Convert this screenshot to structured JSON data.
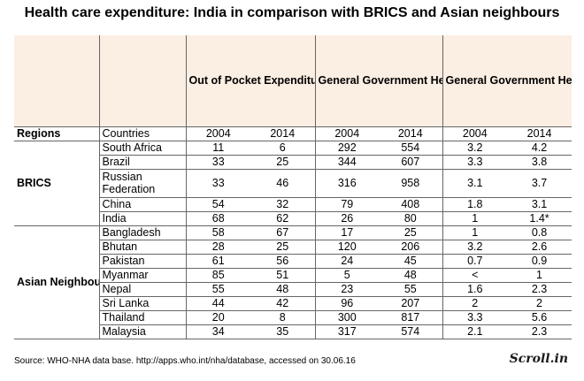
{
  "title": "Health care expenditure: India in comparison with BRICS and Asian neighbours",
  "headers": {
    "oops": "Out of Pocket Expenditure (OOPS) as % of Total Health Expenditure (THE)",
    "gghe_capita": "General Government Health Expenditure per Capita in Int$ (Purchasing Power Parity)",
    "gghe_gdp": "General Government Health Expenditure (GGHE) as % of Gross Domestic Product (GDP)"
  },
  "columns": {
    "regions": "Regions",
    "countries": "Countries",
    "years": [
      "2004",
      "2014",
      "2004",
      "2014",
      "2004",
      "2014"
    ]
  },
  "groups": [
    {
      "region": "BRICS",
      "rows": [
        {
          "country": "South Africa",
          "values": [
            "11",
            "6",
            "292",
            "554",
            "3.2",
            "4.2"
          ]
        },
        {
          "country": "Brazil",
          "values": [
            "33",
            "25",
            "344",
            "607",
            "3.3",
            "3.8"
          ]
        },
        {
          "country": "Russian Federation",
          "values": [
            "33",
            "46",
            "316",
            "958",
            "3.1",
            "3.7"
          ]
        },
        {
          "country": "China",
          "values": [
            "54",
            "32",
            "79",
            "408",
            "1.8",
            "3.1"
          ]
        },
        {
          "country": "India",
          "values": [
            "68",
            "62",
            "26",
            "80",
            "1",
            "1.4*"
          ]
        }
      ]
    },
    {
      "region": "Asian Neighbours",
      "rows": [
        {
          "country": "Bangladesh",
          "values": [
            "58",
            "67",
            "17",
            "25",
            "1",
            "0.8"
          ]
        },
        {
          "country": "Bhutan",
          "values": [
            "28",
            "25",
            "120",
            "206",
            "3.2",
            "2.6"
          ]
        },
        {
          "country": "Pakistan",
          "values": [
            "61",
            "56",
            "24",
            "45",
            "0.7",
            "0.9"
          ]
        },
        {
          "country": "Myanmar",
          "values": [
            "85",
            "51",
            "5",
            "48",
            "<",
            "1"
          ]
        },
        {
          "country": "Nepal",
          "values": [
            "55",
            "48",
            "23",
            "55",
            "1.6",
            "2.3"
          ]
        },
        {
          "country": "Sri Lanka",
          "values": [
            "44",
            "42",
            "96",
            "207",
            "2",
            "2"
          ]
        },
        {
          "country": "Thailand",
          "values": [
            "20",
            "8",
            "300",
            "817",
            "3.3",
            "5.6"
          ]
        },
        {
          "country": "Malaysia",
          "values": [
            "34",
            "35",
            "317",
            "574",
            "2.1",
            "2.3"
          ]
        }
      ]
    }
  ],
  "source": "Source: WHO-NHA data base. http://apps.who.int/nha/database, accessed on 30.06.16",
  "brand": "Scroll.in"
}
